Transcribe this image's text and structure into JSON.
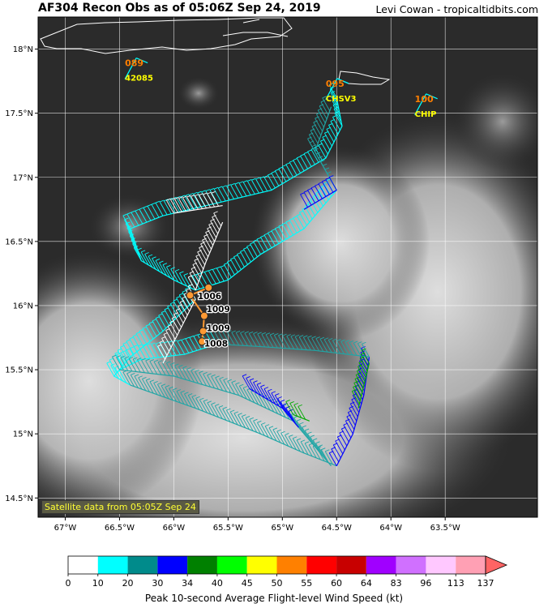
{
  "header": {
    "title": "AF304 Recon Obs as of 05:06Z Sep 24, 2019",
    "credit": "Levi Cowan - tropicaltidbits.com"
  },
  "map": {
    "lon_range": [
      -67.25,
      -62.65
    ],
    "lat_range": [
      14.35,
      18.25
    ],
    "lat_ticks": [
      {
        "value": 18,
        "label": "18°N"
      },
      {
        "value": 17.5,
        "label": "17.5°N"
      },
      {
        "value": 17,
        "label": "17°N"
      },
      {
        "value": 16.5,
        "label": "16.5°N"
      },
      {
        "value": 16,
        "label": "16°N"
      },
      {
        "value": 15.5,
        "label": "15.5°N"
      },
      {
        "value": 15,
        "label": "15°N"
      },
      {
        "value": 14.5,
        "label": "14.5°N"
      }
    ],
    "lon_ticks": [
      {
        "value": -67,
        "label": "67°W"
      },
      {
        "value": -66.5,
        "label": "66.5°W"
      },
      {
        "value": -66,
        "label": "66°W"
      },
      {
        "value": -65.5,
        "label": "65.5°W"
      },
      {
        "value": -65,
        "label": "65°W"
      },
      {
        "value": -64.5,
        "label": "64.5°W"
      },
      {
        "value": -64,
        "label": "64°W"
      },
      {
        "value": -63.5,
        "label": "63.5°W"
      }
    ],
    "satellite_label": "Satellite data from 05:05Z Sep 24",
    "buoys": [
      {
        "id": "42085",
        "value": "089",
        "lon": -66.45,
        "lat": 17.88
      },
      {
        "id": "CHSV3",
        "value": "095",
        "lon": -64.6,
        "lat": 17.72
      },
      {
        "id": "CHIP",
        "value": "100",
        "lon": -63.78,
        "lat": 17.6
      }
    ],
    "pressure_obs": [
      {
        "value": "1006",
        "lon": -65.78,
        "lat": 16.05
      },
      {
        "value": "1009",
        "lon": -65.7,
        "lat": 15.95
      },
      {
        "value": "1009",
        "lon": -65.7,
        "lat": 15.8
      },
      {
        "value": "1008",
        "lon": -65.72,
        "lat": 15.68
      }
    ],
    "center_fixes": [
      {
        "lon": -65.68,
        "lat": 16.14
      },
      {
        "lon": -65.85,
        "lat": 16.08
      },
      {
        "lon": -65.72,
        "lat": 15.92
      },
      {
        "lon": -65.73,
        "lat": 15.8
      },
      {
        "lon": -65.74,
        "lat": 15.72
      }
    ]
  },
  "colorbar": {
    "label": "Peak 10-second Average Flight-level Wind Speed (kt)",
    "ticks": [
      "0",
      "10",
      "20",
      "30",
      "34",
      "40",
      "45",
      "50",
      "55",
      "60",
      "64",
      "83",
      "96",
      "113",
      "137"
    ],
    "colors": [
      "#ffffff",
      "#00ffff",
      "#008b8b",
      "#0000ff",
      "#008000",
      "#00ff00",
      "#ffff00",
      "#ff8000",
      "#ff0000",
      "#c80000",
      "#a000ff",
      "#d070ff",
      "#ffc8ff",
      "#ffa0b4"
    ],
    "extend_color": "#ff6464"
  },
  "colors": {
    "cyan": "#00ffff",
    "teal": "#20a6a6",
    "blue": "#0000ff",
    "green": "#00aa00",
    "white": "#ffffff",
    "buoy_value": "#ff7f00",
    "buoy_id": "#ffff00",
    "center_fix": "#ff9933"
  }
}
